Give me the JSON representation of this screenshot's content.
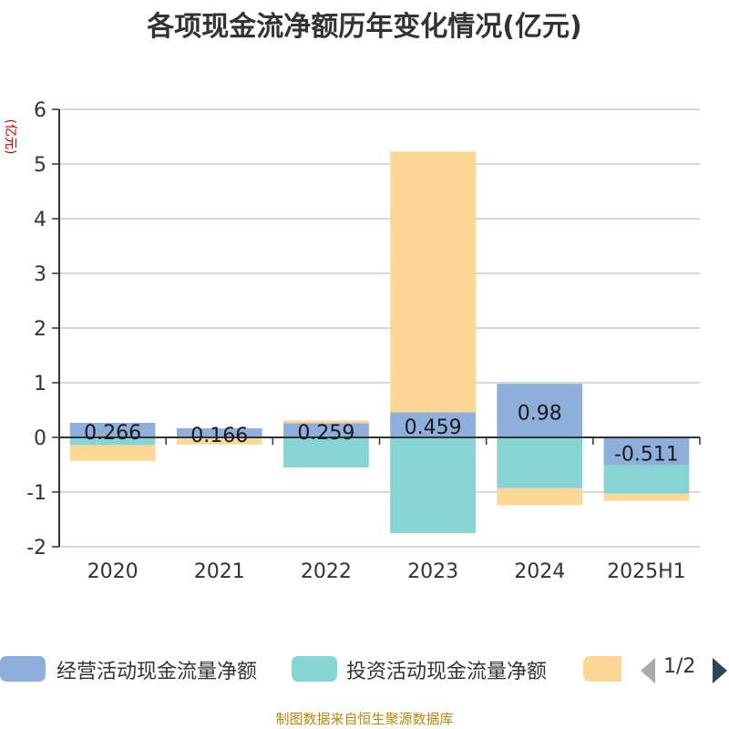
{
  "title": "各项现金流净额历年变化情况(亿元)",
  "unit_label": "(亿元)",
  "source": "制图数据来自恒生聚源数据库",
  "legend": {
    "items": [
      {
        "label": "经营活动现金流量净额",
        "color": "#8eaedb"
      },
      {
        "label": "投资活动现金流量净额",
        "color": "#86d4d4"
      },
      {
        "label": "",
        "color": "#fdd795"
      }
    ],
    "page": "1/2"
  },
  "chart_data": {
    "type": "bar",
    "stacked": true,
    "categories": [
      "2020",
      "2021",
      "2022",
      "2023",
      "2024",
      "2025H1"
    ],
    "ylim": [
      -2,
      6
    ],
    "yticks": [
      -2,
      -1,
      0,
      1,
      2,
      3,
      4,
      5,
      6
    ],
    "grid": true,
    "legend_position": "bottom",
    "series": [
      {
        "name": "经营活动现金流量净额",
        "color": "#8eaedb",
        "values": [
          0.266,
          0.166,
          0.259,
          0.459,
          0.98,
          -0.511
        ]
      },
      {
        "name": "投资活动现金流量净额",
        "color": "#86d4d4",
        "values": [
          -0.14,
          -0.02,
          -0.55,
          -1.75,
          -0.93,
          -0.52
        ]
      },
      {
        "color": "#fdd795",
        "values": [
          -0.29,
          -0.11,
          0.05,
          4.77,
          -0.31,
          -0.13
        ]
      }
    ],
    "data_labels": [
      "0.266",
      "0.166",
      "0.259",
      "0.459",
      "0.98",
      "-0.511"
    ]
  }
}
